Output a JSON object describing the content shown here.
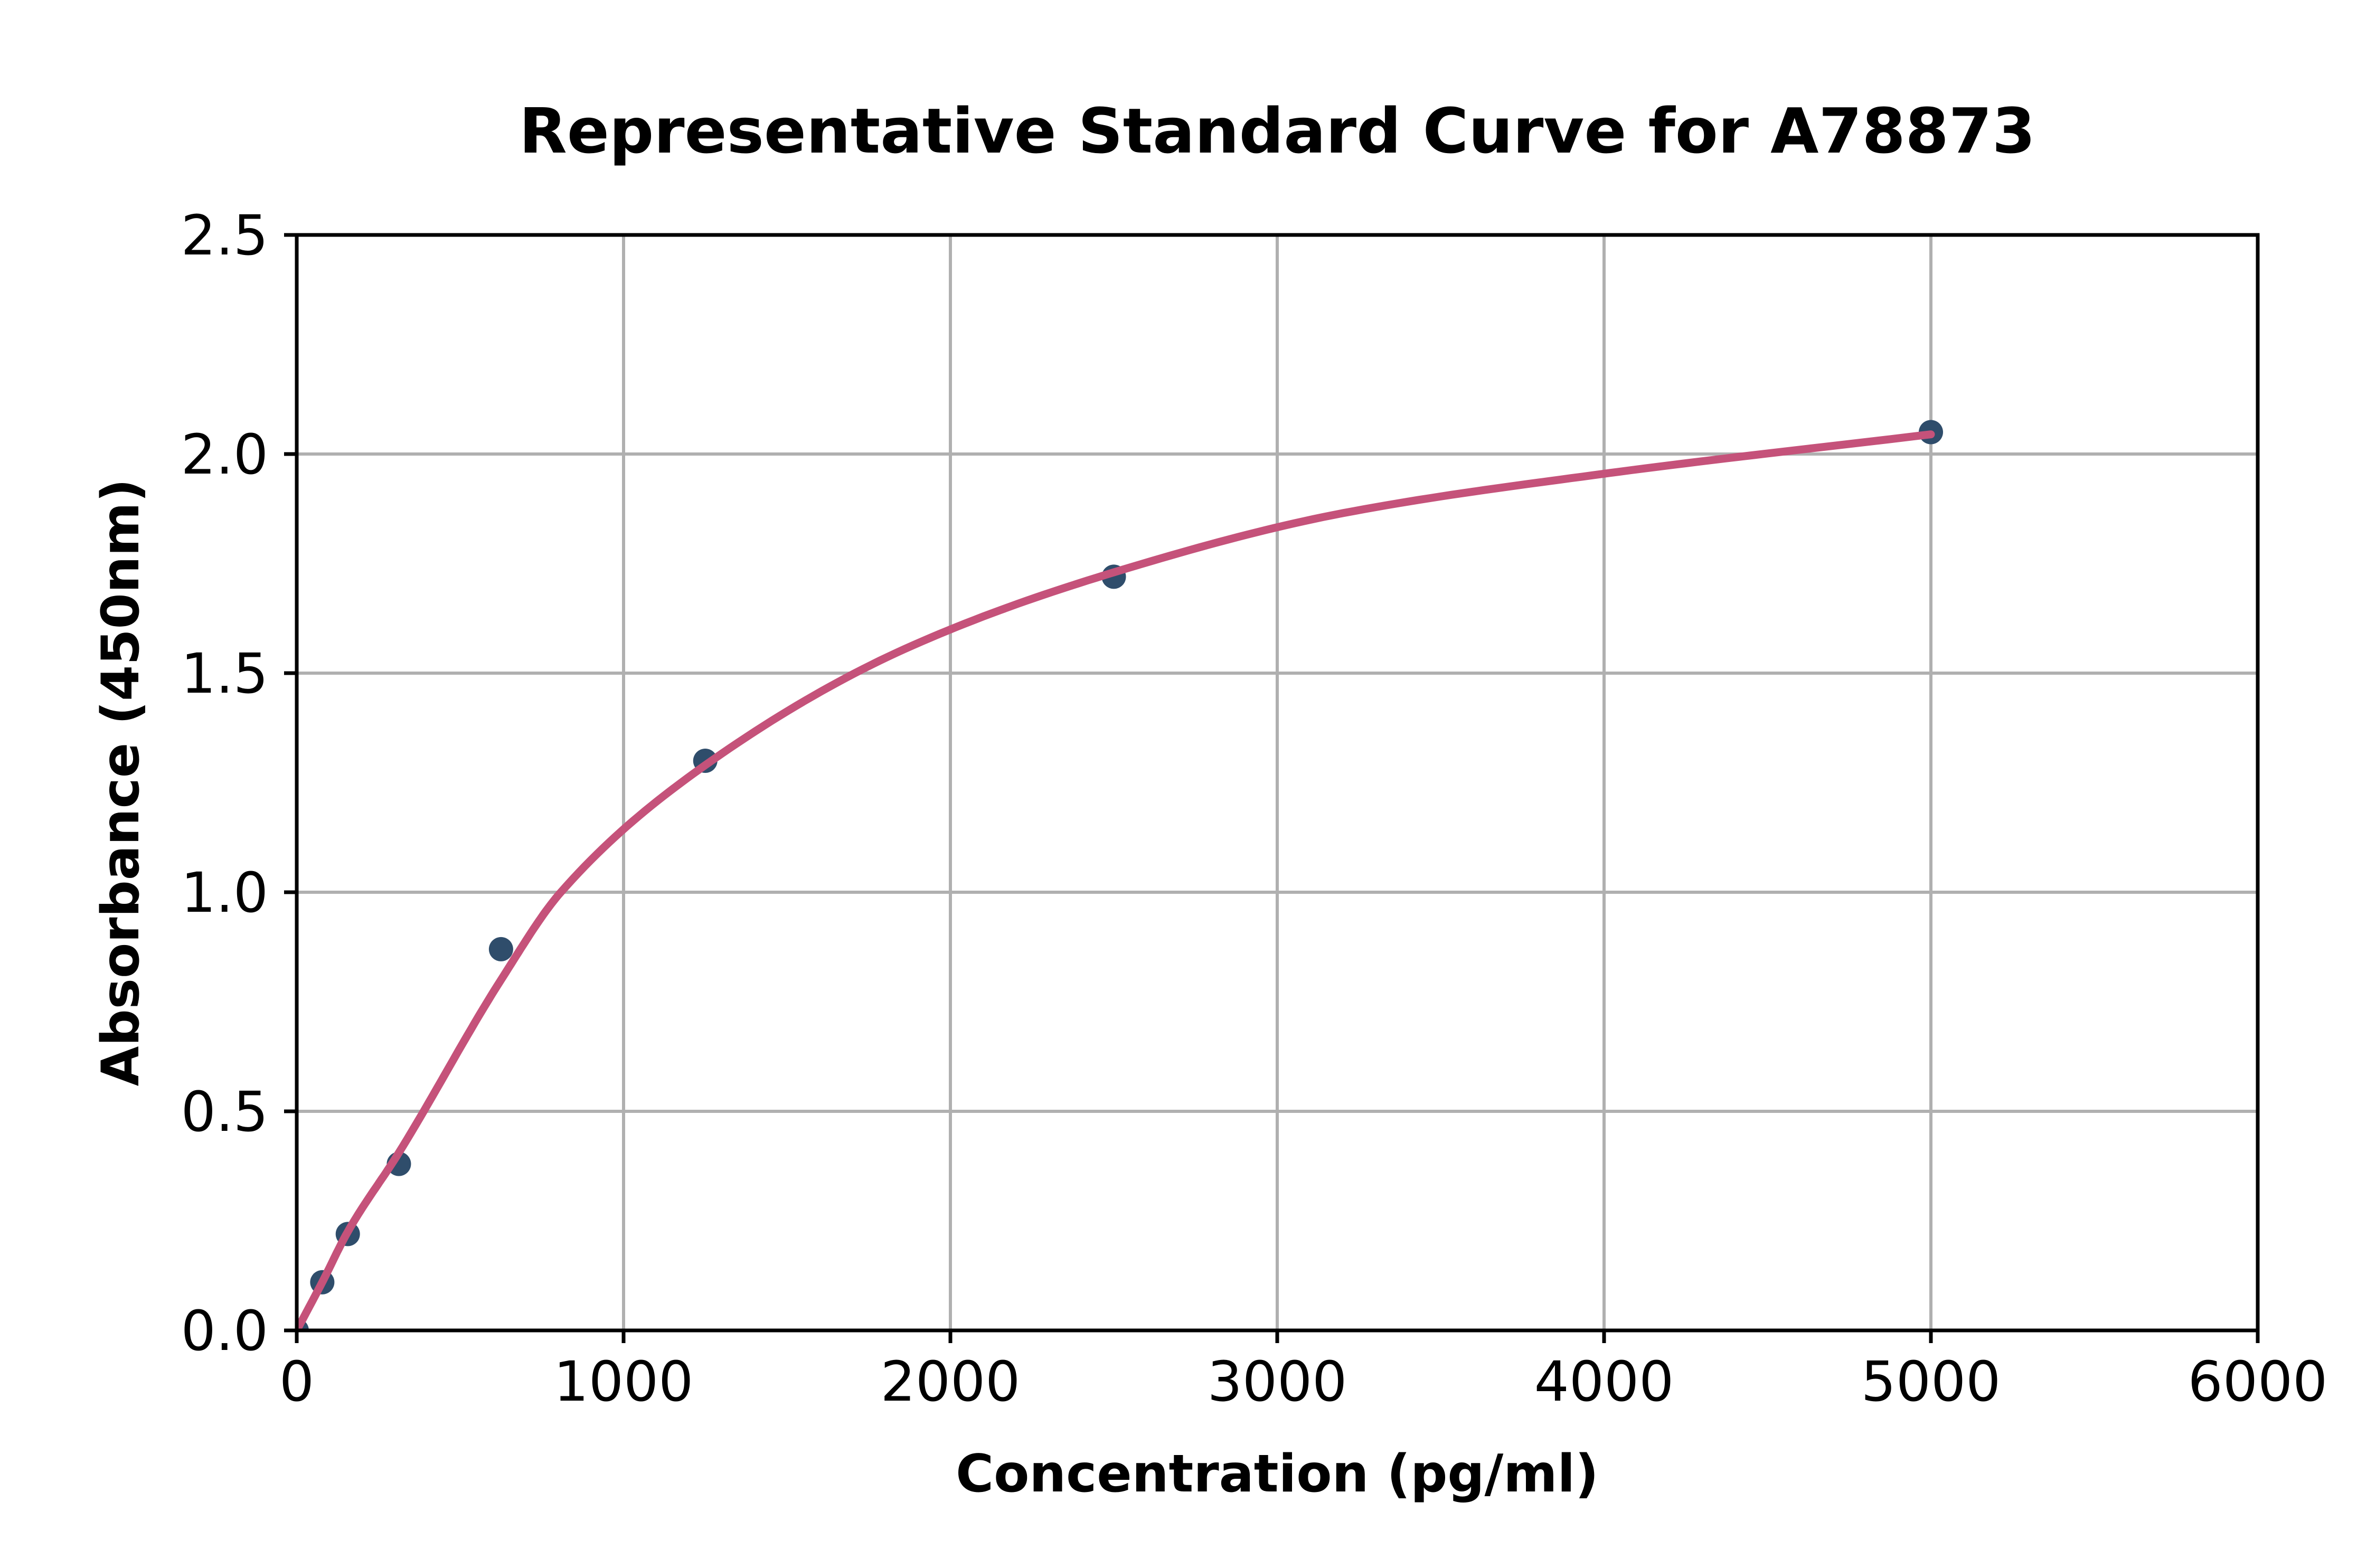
{
  "chart_data": {
    "type": "scatter",
    "title": "Representative Standard Curve for A78873",
    "xlabel": "Concentration (pg/ml)",
    "ylabel": "Absorbance (450nm)",
    "xlim": [
      0,
      6000
    ],
    "ylim": [
      0,
      2.5
    ],
    "x_ticks": [
      0,
      1000,
      2000,
      3000,
      4000,
      5000,
      6000
    ],
    "x_tick_labels": [
      "0",
      "1000",
      "2000",
      "3000",
      "4000",
      "5000",
      "6000"
    ],
    "y_ticks": [
      0,
      0.5,
      1.0,
      1.5,
      2.0,
      2.5
    ],
    "y_tick_labels": [
      "0.0",
      "0.5",
      "1.0",
      "1.5",
      "2.0",
      "2.5"
    ],
    "grid": true,
    "legend": "none",
    "series": [
      {
        "name": "standards",
        "concentrations_pg_ml": [
          0,
          78.13,
          156.25,
          312.5,
          625,
          1250,
          2500,
          5000
        ],
        "absorbances": [
          0.0,
          0.11,
          0.22,
          0.38,
          0.87,
          1.3,
          1.72,
          2.05
        ]
      }
    ],
    "fit_curve_points": [
      [
        0,
        0.0
      ],
      [
        78,
        0.11
      ],
      [
        156,
        0.225
      ],
      [
        312,
        0.405
      ],
      [
        625,
        0.8
      ],
      [
        808,
        1.0
      ],
      [
        1250,
        1.29
      ],
      [
        1860,
        1.555
      ],
      [
        2500,
        1.73
      ],
      [
        3200,
        1.865
      ],
      [
        4000,
        1.955
      ],
      [
        5000,
        2.045
      ]
    ],
    "colors": {
      "marker": "#2f4d6b",
      "line": "#c5527a",
      "grid": "#b0b0b0",
      "frame": "#000000",
      "background": "#ffffff"
    }
  }
}
